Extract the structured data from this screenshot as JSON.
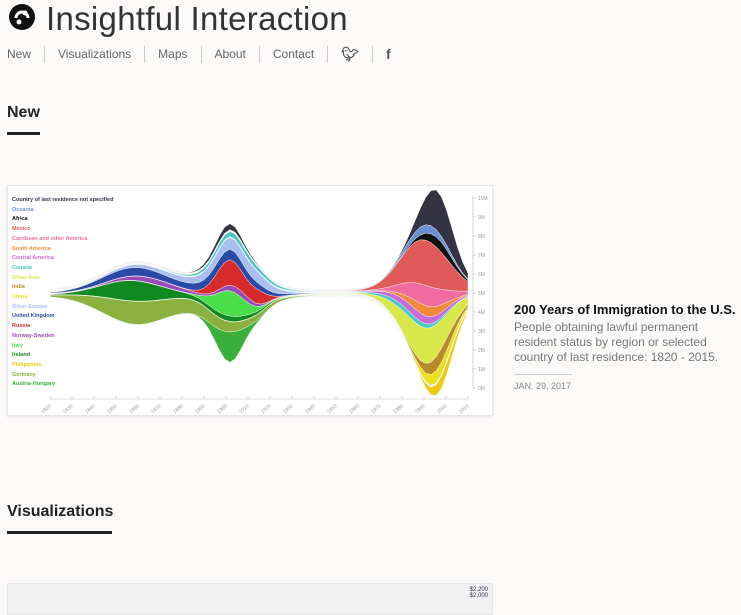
{
  "site": {
    "title": "Insightful Interaction"
  },
  "nav": {
    "items": [
      "New",
      "Visualizations",
      "Maps",
      "About",
      "Contact"
    ],
    "twitter": "twitter-icon",
    "facebook": "f"
  },
  "sections": {
    "new": "New",
    "visualizations": "Visualizations"
  },
  "post": {
    "title": "200 Years of Immigration to the U.S.",
    "description": "People obtaining lawful permanent resident status by region or selected country of last residence: 1820 - 2015.",
    "date": "JAN. 29, 2017"
  },
  "chart_data": {
    "type": "area",
    "legend": [
      {
        "name": "Country of last residence not specified",
        "color": "#333344"
      },
      {
        "name": "Oceania",
        "color": "#6a8fd8"
      },
      {
        "name": "Africa",
        "color": "#111111"
      },
      {
        "name": "Mexico",
        "color": "#e05a5a"
      },
      {
        "name": "Carribean and other America",
        "color": "#f06ca0"
      },
      {
        "name": "South America",
        "color": "#f08a3a"
      },
      {
        "name": "Central America",
        "color": "#c86ad8"
      },
      {
        "name": "Canada",
        "color": "#4ac8c8"
      },
      {
        "name": "Other Asia",
        "color": "#d8e84a"
      },
      {
        "name": "India",
        "color": "#b88a2a"
      },
      {
        "name": "China",
        "color": "#e8e020"
      },
      {
        "name": "Other Europe",
        "color": "#a8c0f0"
      },
      {
        "name": "United Kingdom",
        "color": "#2a4aa8"
      },
      {
        "name": "Russia",
        "color": "#d82a2a"
      },
      {
        "name": "Norway-Sweden",
        "color": "#9a4ab8"
      },
      {
        "name": "Italy",
        "color": "#4ade4a"
      },
      {
        "name": "Ireland",
        "color": "#108a20"
      },
      {
        "name": "Philippines",
        "color": "#f0c810"
      },
      {
        "name": "Germany",
        "color": "#8ab040"
      },
      {
        "name": "Austria-Hungary",
        "color": "#3ab03a"
      }
    ],
    "x_ticks": [
      "1820",
      "1830",
      "1840",
      "1850",
      "1860",
      "1870",
      "1880",
      "1890",
      "1900",
      "1910",
      "1920",
      "1930",
      "1940",
      "1950",
      "1960",
      "1970",
      "1980",
      "1990",
      "2000",
      "2010"
    ],
    "y_ticks": [
      "10M",
      "9M",
      "8M",
      "7M",
      "6M",
      "5M",
      "4M",
      "3M",
      "2M",
      "1M",
      "0M"
    ]
  },
  "next_card": {
    "labels": [
      "$2,200",
      "$2,000"
    ]
  }
}
